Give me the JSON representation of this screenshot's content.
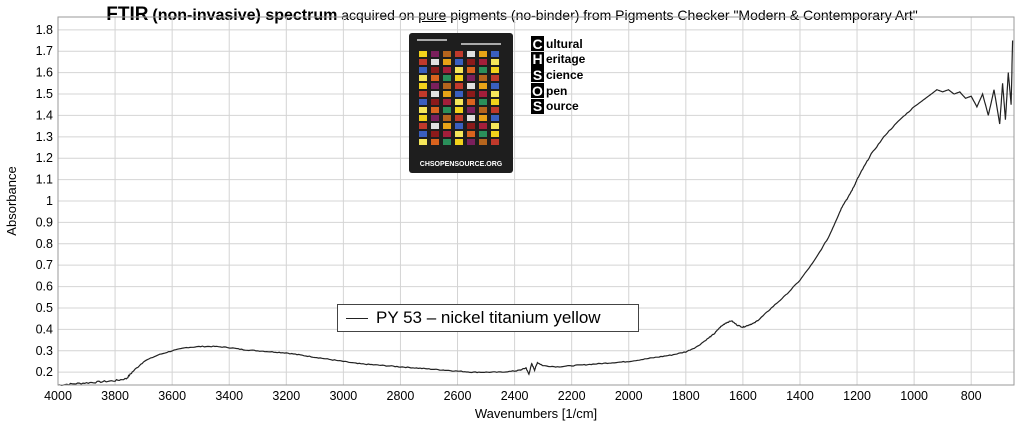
{
  "header": {
    "title_bold": "FTIR",
    "title_bold2": "(non-invasive) spectrum",
    "subtitle_pre": "acquired on",
    "subtitle_underlined": "pure",
    "subtitle_post": "pigments (no-binder) from Pigments Checker \"Modern & Contemporary Art\""
  },
  "logo": {
    "card_footer": "CHSOPENSOURCE.ORG",
    "chsos_rows": [
      {
        "cap": "C",
        "rest": "ultural"
      },
      {
        "cap": "H",
        "rest": "eritage"
      },
      {
        "cap": "S",
        "rest": "cience"
      },
      {
        "cap": "O",
        "rest": "pen"
      },
      {
        "cap": "S",
        "rest": "ource"
      }
    ]
  },
  "legend": {
    "label": "PY 53 – nickel titanium yellow",
    "line_color": "#222222"
  },
  "chart_data": {
    "type": "line",
    "xlabel": "Wavenumbers [1/cm]",
    "ylabel": "Absorbance",
    "xlim": [
      4000,
      650
    ],
    "ylim": [
      0.14,
      1.86
    ],
    "x_reversed": true,
    "grid": true,
    "x_ticks": [
      4000,
      3800,
      3600,
      3400,
      3200,
      3000,
      2800,
      2600,
      2400,
      2200,
      2000,
      1800,
      1600,
      1400,
      1200,
      1000,
      800
    ],
    "y_ticks": [
      0.2,
      0.3,
      0.4,
      0.5,
      0.6,
      0.7,
      0.8,
      0.9,
      1,
      1.1,
      1.2,
      1.3,
      1.4,
      1.5,
      1.6,
      1.7,
      1.8
    ],
    "series": [
      {
        "name": "PY 53 – nickel titanium yellow",
        "color": "#222222",
        "x": [
          4000,
          3950,
          3900,
          3850,
          3800,
          3760,
          3740,
          3700,
          3650,
          3600,
          3550,
          3500,
          3450,
          3400,
          3350,
          3300,
          3250,
          3200,
          3150,
          3100,
          3050,
          3000,
          2950,
          2900,
          2850,
          2800,
          2750,
          2700,
          2650,
          2600,
          2550,
          2500,
          2450,
          2400,
          2380,
          2360,
          2350,
          2340,
          2330,
          2320,
          2300,
          2250,
          2200,
          2150,
          2100,
          2050,
          2000,
          1950,
          1900,
          1850,
          1800,
          1760,
          1720,
          1700,
          1680,
          1660,
          1640,
          1620,
          1600,
          1580,
          1560,
          1540,
          1500,
          1450,
          1400,
          1350,
          1300,
          1270,
          1250,
          1230,
          1210,
          1200,
          1180,
          1150,
          1100,
          1050,
          1000,
          980,
          950,
          920,
          900,
          880,
          860,
          840,
          820,
          800,
          780,
          760,
          740,
          720,
          700,
          690,
          680,
          670,
          660,
          655
        ],
        "y": [
          0.14,
          0.145,
          0.15,
          0.155,
          0.16,
          0.17,
          0.2,
          0.25,
          0.28,
          0.3,
          0.315,
          0.32,
          0.32,
          0.315,
          0.305,
          0.3,
          0.295,
          0.29,
          0.28,
          0.27,
          0.26,
          0.25,
          0.24,
          0.235,
          0.23,
          0.225,
          0.22,
          0.215,
          0.21,
          0.205,
          0.2,
          0.2,
          0.2,
          0.205,
          0.21,
          0.22,
          0.19,
          0.24,
          0.21,
          0.245,
          0.23,
          0.225,
          0.23,
          0.235,
          0.24,
          0.245,
          0.25,
          0.26,
          0.27,
          0.28,
          0.295,
          0.32,
          0.36,
          0.38,
          0.41,
          0.43,
          0.44,
          0.42,
          0.41,
          0.42,
          0.43,
          0.45,
          0.5,
          0.56,
          0.63,
          0.72,
          0.83,
          0.92,
          0.98,
          1.02,
          1.07,
          1.1,
          1.15,
          1.22,
          1.31,
          1.38,
          1.44,
          1.46,
          1.49,
          1.52,
          1.51,
          1.52,
          1.5,
          1.51,
          1.48,
          1.49,
          1.44,
          1.5,
          1.4,
          1.52,
          1.36,
          1.55,
          1.38,
          1.6,
          1.45,
          1.75
        ]
      }
    ]
  }
}
